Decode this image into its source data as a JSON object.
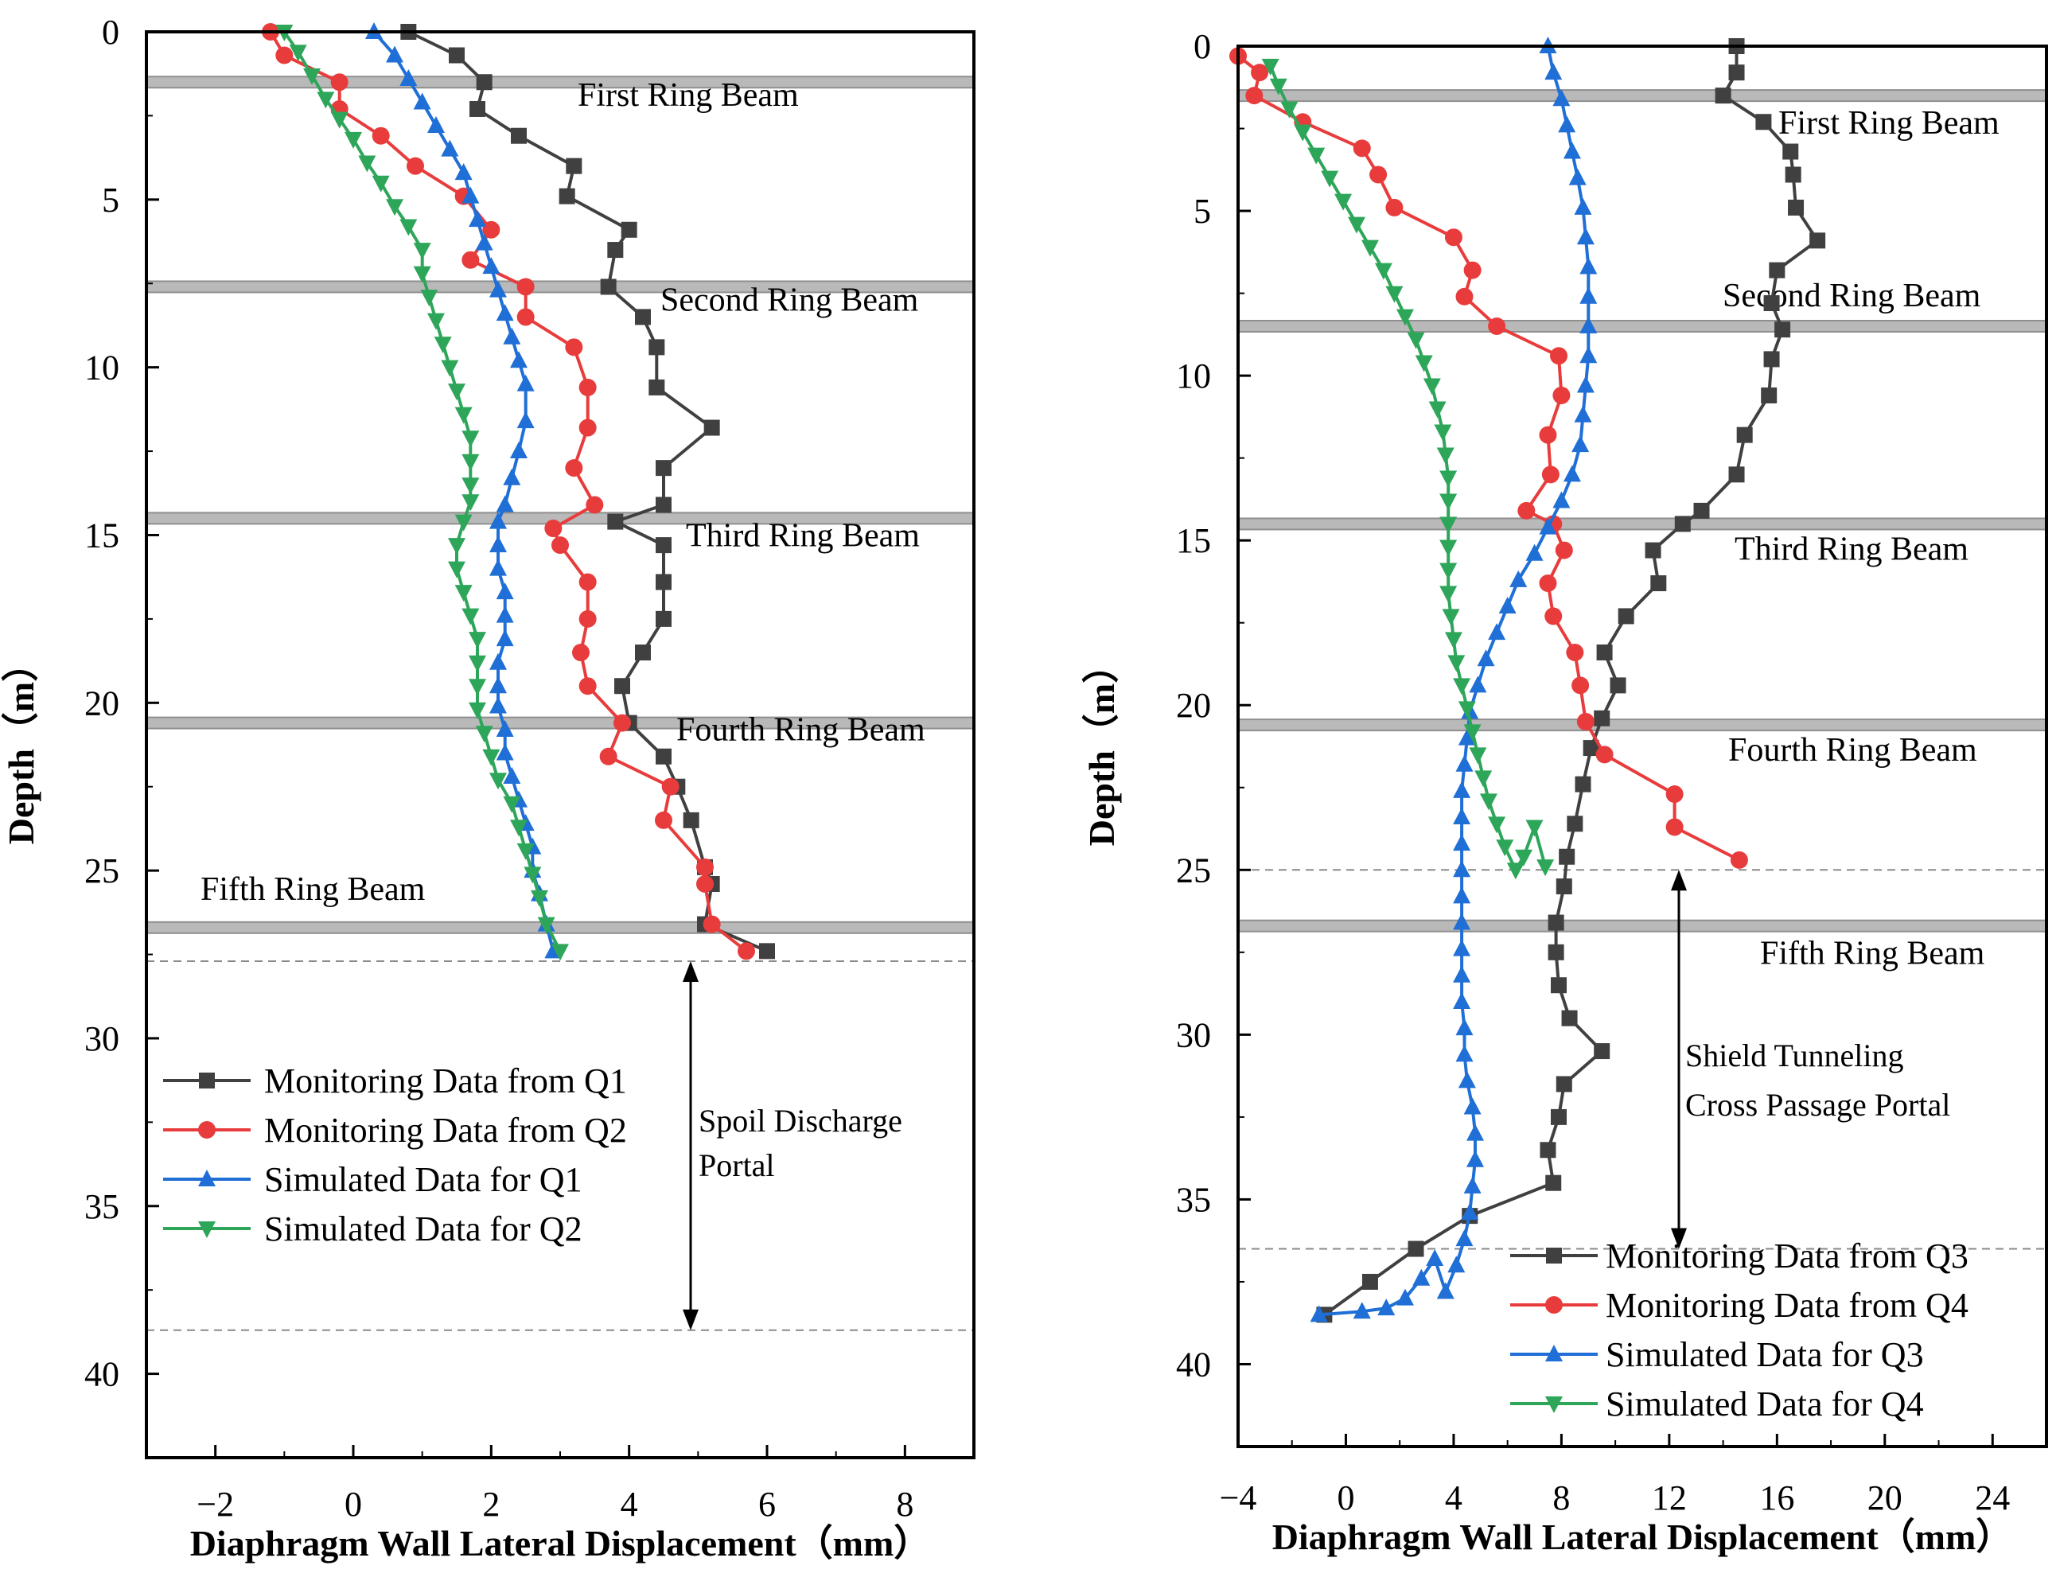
{
  "chart_data": [
    {
      "type": "line",
      "xlabel": "Diaphragm Wall Lateral Displacement（mm）",
      "ylabel": "Depth（m）",
      "xlim": [
        -3,
        9
      ],
      "ylim": [
        0,
        42.5
      ],
      "y_inverted": true,
      "xticks": [
        -2,
        0,
        2,
        4,
        6,
        8
      ],
      "yticks": [
        0,
        5,
        10,
        15,
        20,
        25,
        30,
        35,
        40
      ],
      "legend_position": "bottom-left",
      "ring_beams": [
        {
          "depth": 1.5,
          "label": "First Ring Beam"
        },
        {
          "depth": 7.6,
          "label": "Second Ring Beam"
        },
        {
          "depth": 14.5,
          "label": "Third Ring Beam"
        },
        {
          "depth": 20.6,
          "label": "Fourth Ring Beam"
        },
        {
          "depth": 26.7,
          "label": "Fifth Ring Beam"
        }
      ],
      "portal": {
        "top": 27.7,
        "bottom": 38.7,
        "label_lines": [
          "Spoil Discharge",
          "Portal"
        ]
      },
      "series": [
        {
          "name": "Monitoring Data from  Q1",
          "color": "#404040",
          "marker": "square",
          "x": [
            0.8,
            1.5,
            1.9,
            1.8,
            2.4,
            3.2,
            3.1,
            4.0,
            3.8,
            3.7,
            4.2,
            4.4,
            4.4,
            5.2,
            4.5,
            4.5,
            3.8,
            4.5,
            4.5,
            4.5,
            4.2,
            3.9,
            4.0,
            4.5,
            4.7,
            4.9,
            5.1,
            5.2,
            5.1,
            6.0
          ],
          "y": [
            0,
            0.7,
            1.5,
            2.3,
            3.1,
            4.0,
            4.9,
            5.9,
            6.5,
            7.6,
            8.5,
            9.4,
            10.6,
            11.8,
            13.0,
            14.1,
            14.6,
            15.3,
            16.4,
            17.5,
            18.5,
            19.5,
            20.6,
            21.6,
            22.5,
            23.5,
            24.9,
            25.4,
            26.6,
            27.4
          ]
        },
        {
          "name": "Monitoring Data from Q2",
          "color": "#e83c3c",
          "marker": "circle",
          "x": [
            -1.2,
            -1.0,
            -0.2,
            -0.2,
            0.4,
            0.9,
            1.6,
            2.0,
            1.7,
            2.5,
            2.5,
            3.2,
            3.4,
            3.4,
            3.2,
            3.5,
            2.9,
            3.0,
            3.4,
            3.4,
            3.3,
            3.4,
            3.9,
            3.7,
            4.6,
            4.5,
            5.1,
            5.1,
            5.2,
            5.7
          ],
          "y": [
            0,
            0.7,
            1.5,
            2.3,
            3.1,
            4.0,
            4.9,
            5.9,
            6.8,
            7.6,
            8.5,
            9.4,
            10.6,
            11.8,
            13.0,
            14.1,
            14.8,
            15.3,
            16.4,
            17.5,
            18.5,
            19.5,
            20.6,
            21.6,
            22.5,
            23.5,
            24.9,
            25.4,
            26.6,
            27.4
          ]
        },
        {
          "name": "Simulated Data for Q1",
          "color": "#1f6fd6",
          "marker": "triangle-up",
          "x": [
            0.3,
            0.6,
            0.8,
            1.0,
            1.2,
            1.4,
            1.6,
            1.7,
            1.8,
            1.9,
            2.0,
            2.1,
            2.2,
            2.3,
            2.4,
            2.5,
            2.5,
            2.4,
            2.3,
            2.2,
            2.1,
            2.1,
            2.1,
            2.2,
            2.2,
            2.2,
            2.1,
            2.1,
            2.1,
            2.2,
            2.2,
            2.3,
            2.4,
            2.5,
            2.6,
            2.6,
            2.7,
            2.8,
            2.9
          ],
          "y": [
            0,
            0.7,
            1.4,
            2.1,
            2.8,
            3.5,
            4.2,
            4.9,
            5.6,
            6.3,
            7.0,
            7.7,
            8.4,
            9.1,
            9.8,
            10.5,
            11.6,
            12.5,
            13.3,
            14.1,
            14.6,
            15.3,
            16.0,
            16.7,
            17.4,
            18.1,
            18.8,
            19.5,
            20.1,
            20.8,
            21.5,
            22.2,
            22.9,
            23.6,
            24.3,
            25.0,
            25.7,
            26.6,
            27.4
          ]
        },
        {
          "name": "Simulated Data for  Q2",
          "color": "#2ea65a",
          "marker": "triangle-down",
          "x": [
            -1.0,
            -0.8,
            -0.6,
            -0.4,
            -0.2,
            0.0,
            0.2,
            0.4,
            0.6,
            0.8,
            1.0,
            1.0,
            1.1,
            1.2,
            1.3,
            1.4,
            1.5,
            1.6,
            1.7,
            1.7,
            1.7,
            1.7,
            1.6,
            1.5,
            1.5,
            1.6,
            1.7,
            1.8,
            1.8,
            1.8,
            1.8,
            1.9,
            2.0,
            2.1,
            2.3,
            2.4,
            2.5,
            2.6,
            2.7,
            2.8,
            3.0
          ],
          "y": [
            0,
            0.6,
            1.3,
            2.0,
            2.6,
            3.2,
            3.9,
            4.5,
            5.2,
            5.8,
            6.5,
            7.2,
            7.9,
            8.6,
            9.3,
            10.0,
            10.7,
            11.4,
            12.1,
            12.8,
            13.5,
            14.0,
            14.6,
            15.3,
            16.0,
            16.7,
            17.4,
            18.1,
            18.8,
            19.5,
            20.2,
            20.9,
            21.6,
            22.3,
            23.0,
            23.7,
            24.4,
            25.1,
            25.8,
            26.6,
            27.4
          ]
        }
      ]
    },
    {
      "type": "line",
      "xlabel": "Diaphragm Wall Lateral Displacement（mm）",
      "ylabel": "Depth（m）",
      "xlim": [
        -4,
        26
      ],
      "ylim": [
        0,
        42.5
      ],
      "y_inverted": true,
      "xticks": [
        -4,
        0,
        4,
        8,
        12,
        16,
        20,
        24
      ],
      "yticks": [
        0,
        5,
        10,
        15,
        20,
        25,
        30,
        35,
        40
      ],
      "legend_position": "bottom-right",
      "ring_beams": [
        {
          "depth": 1.5,
          "label": "First Ring Beam"
        },
        {
          "depth": 8.5,
          "label": "Second Ring Beam"
        },
        {
          "depth": 14.5,
          "label": "Third Ring Beam"
        },
        {
          "depth": 20.6,
          "label": "Fourth Ring Beam"
        },
        {
          "depth": 26.7,
          "label": "Fifth Ring Beam"
        }
      ],
      "portal": {
        "top": 25.0,
        "bottom": 36.5,
        "label_lines": [
          "Shield Tunneling",
          "Cross Passage Portal"
        ]
      },
      "series": [
        {
          "name": "Monitoring Data from Q3",
          "color": "#404040",
          "marker": "square",
          "x": [
            14.5,
            14.5,
            14.0,
            15.5,
            16.5,
            16.6,
            16.7,
            17.5,
            16.0,
            15.8,
            16.2,
            15.8,
            15.7,
            14.8,
            14.5,
            13.2,
            12.5,
            11.4,
            11.6,
            10.4,
            9.6,
            10.1,
            9.5,
            9.1,
            8.8,
            8.5,
            8.2,
            8.1,
            7.8,
            7.8,
            7.9,
            8.3,
            9.5,
            8.1,
            7.9,
            7.5,
            7.7,
            4.6,
            2.6,
            0.9,
            -0.8
          ],
          "y": [
            0,
            0.8,
            1.5,
            2.3,
            3.2,
            3.9,
            4.9,
            5.9,
            6.8,
            7.8,
            8.6,
            9.5,
            10.6,
            11.8,
            13.0,
            14.1,
            14.5,
            15.3,
            16.3,
            17.3,
            18.4,
            19.4,
            20.4,
            21.3,
            22.4,
            23.6,
            24.6,
            25.5,
            26.6,
            27.5,
            28.5,
            29.5,
            30.5,
            31.5,
            32.5,
            33.5,
            34.5,
            35.5,
            36.5,
            37.5,
            38.5
          ]
        },
        {
          "name": "Monitoring Data from Q4",
          "color": "#e83c3c",
          "marker": "circle",
          "x": [
            -4.0,
            -3.2,
            -3.4,
            -1.6,
            0.6,
            1.2,
            1.8,
            4.0,
            4.7,
            4.4,
            5.6,
            7.9,
            8.0,
            7.5,
            7.6,
            6.7,
            7.7,
            8.1,
            7.5,
            7.7,
            8.5,
            8.7,
            8.9,
            9.6,
            12.2,
            12.2,
            14.6
          ],
          "y": [
            0.3,
            0.8,
            1.5,
            2.3,
            3.1,
            3.9,
            4.9,
            5.8,
            6.8,
            7.6,
            8.5,
            9.4,
            10.6,
            11.8,
            13.0,
            14.1,
            14.5,
            15.3,
            16.3,
            17.3,
            18.4,
            19.4,
            20.5,
            21.5,
            22.7,
            23.7,
            24.7
          ]
        },
        {
          "name": "Simulated Data for Q3",
          "color": "#1f6fd6",
          "marker": "triangle-up",
          "x": [
            7.5,
            7.7,
            8.0,
            8.2,
            8.4,
            8.6,
            8.8,
            8.9,
            9.0,
            9.0,
            9.0,
            9.0,
            8.9,
            8.8,
            8.7,
            8.4,
            8.0,
            7.5,
            7.0,
            6.4,
            6.0,
            5.6,
            5.2,
            4.9,
            4.6,
            4.5,
            4.4,
            4.3,
            4.3,
            4.3,
            4.3,
            4.3,
            4.3,
            4.3,
            4.3,
            4.3,
            4.4,
            4.4,
            4.5,
            4.7,
            4.8,
            4.8,
            4.7,
            4.6,
            4.4,
            4.1,
            3.7,
            3.3,
            2.8,
            2.2,
            1.5,
            0.6,
            -1.0
          ],
          "y": [
            0,
            0.8,
            1.6,
            2.4,
            3.2,
            4.0,
            4.9,
            5.8,
            6.7,
            7.6,
            8.5,
            9.4,
            10.3,
            11.2,
            12.1,
            13.0,
            13.8,
            14.6,
            15.4,
            16.2,
            17.0,
            17.8,
            18.6,
            19.4,
            20.2,
            21.0,
            21.8,
            22.6,
            23.4,
            24.2,
            25.0,
            25.8,
            26.6,
            27.4,
            28.2,
            29.0,
            29.8,
            30.6,
            31.4,
            32.2,
            33.0,
            33.8,
            34.6,
            35.4,
            36.2,
            37.0,
            37.8,
            36.8,
            37.4,
            38.0,
            38.3,
            38.4,
            38.5
          ]
        },
        {
          "name": "Simulated Data for Q4",
          "color": "#2ea65a",
          "marker": "triangle-down",
          "x": [
            -2.8,
            -2.5,
            -2.1,
            -1.6,
            -1.1,
            -0.6,
            -0.1,
            0.4,
            0.9,
            1.4,
            1.8,
            2.2,
            2.6,
            2.9,
            3.2,
            3.4,
            3.6,
            3.7,
            3.8,
            3.8,
            3.8,
            3.8,
            3.8,
            3.8,
            3.9,
            4.0,
            4.1,
            4.3,
            4.5,
            4.7,
            4.9,
            5.1,
            5.3,
            5.6,
            5.9,
            6.3,
            6.6,
            7.0,
            7.4
          ],
          "y": [
            0.6,
            1.2,
            1.9,
            2.6,
            3.3,
            4.0,
            4.7,
            5.4,
            6.1,
            6.8,
            7.5,
            8.2,
            8.9,
            9.6,
            10.3,
            11.0,
            11.7,
            12.4,
            13.1,
            13.8,
            14.5,
            15.2,
            15.9,
            16.6,
            17.3,
            18.0,
            18.7,
            19.4,
            20.1,
            20.8,
            21.5,
            22.2,
            22.9,
            23.6,
            24.3,
            25.0,
            24.6,
            23.7,
            24.9
          ]
        }
      ]
    }
  ]
}
